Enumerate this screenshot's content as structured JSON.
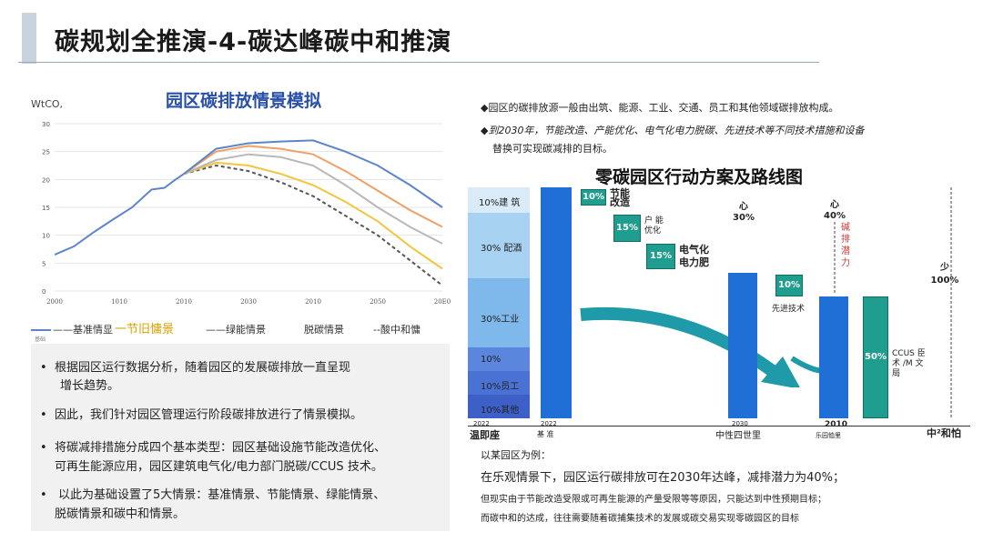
{
  "header": {
    "title": "碳规划全推演-4-碳达峰碳中和推演"
  },
  "left_chart": {
    "title": "园区碳排放情景模拟",
    "unit": "WtCO,",
    "legend": [
      "——基准情显",
      "一节旧慵景",
      "——绿能情景",
      "脱碳情景",
      "--酸中和慵"
    ],
    "legend_small": "基础"
  },
  "chart_data": {
    "type": "line",
    "title": "园区碳排放情景模拟",
    "ylabel": "WtCO,",
    "xlabel": "",
    "ylim": [
      0,
      30
    ],
    "y_ticks": [
      "0",
      "5",
      "10",
      "15",
      "20",
      "25",
      "30"
    ],
    "x_ticks": [
      "2000",
      "1010",
      "2010",
      "2030",
      "2010",
      "2050",
      "20E0"
    ],
    "x_range": [
      0,
      6
    ],
    "grid": true,
    "legend_position": "bottom",
    "colors": [
      "#5b86c7",
      "#f0a066",
      "#b8b8b8",
      "#f2c53d",
      "#555555"
    ],
    "history": {
      "x": [
        0,
        0.3,
        0.6,
        0.9,
        1.2,
        1.5,
        1.7,
        1.85,
        2.0
      ],
      "y": [
        6.5,
        8.0,
        10.5,
        12.8,
        15.0,
        18.2,
        18.5,
        19.8,
        21.0
      ]
    },
    "series": [
      {
        "name": "——基准情显",
        "x": [
          2.0,
          2.5,
          3.0,
          3.5,
          4.0,
          4.5,
          5.0,
          5.5,
          6.0
        ],
        "y": [
          21.0,
          25.5,
          26.5,
          26.8,
          27.0,
          25.0,
          22.5,
          19.0,
          15.0
        ]
      },
      {
        "name": "一节旧慵景",
        "x": [
          2.0,
          2.5,
          3.0,
          3.5,
          4.0,
          4.5,
          5.0,
          5.5,
          6.0
        ],
        "y": [
          21.0,
          25.0,
          26.0,
          25.5,
          24.5,
          21.5,
          18.0,
          14.5,
          11.5
        ]
      },
      {
        "name": "——绿能情景",
        "x": [
          2.0,
          2.5,
          3.0,
          3.5,
          4.0,
          4.5,
          5.0,
          5.5,
          6.0
        ],
        "y": [
          21.0,
          23.5,
          24.5,
          24.0,
          22.5,
          19.0,
          15.0,
          11.5,
          8.5
        ]
      },
      {
        "name": "脱碳情景",
        "x": [
          2.0,
          2.5,
          3.0,
          3.5,
          4.0,
          4.5,
          5.0,
          5.5,
          6.0
        ],
        "y": [
          21.0,
          23.0,
          22.5,
          21.0,
          19.0,
          16.0,
          12.5,
          8.0,
          4.0
        ]
      },
      {
        "name": "--酸中和慵",
        "x": [
          2.0,
          2.5,
          3.0,
          3.5,
          4.0,
          4.5,
          5.0,
          5.5,
          6.0
        ],
        "y": [
          21.0,
          22.5,
          21.5,
          19.5,
          17.0,
          13.5,
          10.0,
          5.5,
          1.0
        ]
      }
    ]
  },
  "left_panel": {
    "bullets": [
      [
        "根据园区运行数据分析，随着园区的发展碳排放一直呈现",
        "增长趋势。"
      ],
      [
        "因此，我们针对园区管理运行阶段碳排放进行了情景模拟。"
      ],
      [
        "将碳减排措施分成四个基本类型：园区基础设施节能改造优化、",
        "可再生能源应用，园区建筑电气化/电力部门脱碳/CCUS  技术。"
      ],
      [
        "以此为基础设置了5大情景：基准情景、节能情景、绿能情景、",
        "脱碳情景和碳中和情景。"
      ]
    ],
    "bullet_mark": "•"
  },
  "right_top": {
    "line1": "◆园区的碳排放源一般由出筑、能源、工业、交通、员工和其他领域碳排放构成。",
    "line2": "◆到2030年，节能改造、产能优化、电气化电力脱碳、先进技术等不同技术措施和设备",
    "line3": "替换可实现碳减排的目标。"
  },
  "roadmap": {
    "title": "零碳园区行动方案及路线图",
    "stack": [
      "10%建 筑",
      "30% 配酒",
      "30%工业",
      "10%",
      "10%员工",
      "10%其他"
    ],
    "stack_colors": [
      "#d9ebf8",
      "#a8d2f2",
      "#7fb8ea",
      "#5a86dd",
      "#4a72d4",
      "#3d60c8"
    ],
    "boxes": {
      "b1": "10%",
      "b1_label": "节能改造",
      "b2": "15%",
      "b2_label": "户 能 优化",
      "b3": "15%",
      "b3_label": "电气化 电力肥",
      "b4": "10%",
      "b4_label": "先进技术",
      "b5": "50%",
      "b5_label": "CCUS 臣 术 /M 文 局"
    },
    "callouts": {
      "c1": "心 30%",
      "c2": "心 40%",
      "c3": "碱 排 潜 力",
      "c4": "少 100%"
    },
    "axis": {
      "t1_year": "2022",
      "t1_label": "温即座",
      "t2_year": "2022",
      "t2_label": "基   准",
      "t3_year": "2030",
      "t3_label": "中性四世里",
      "t4_year": "2010",
      "t4_label": "乐园恤里",
      "t5_label": "中²和怕"
    }
  },
  "bottom_right": {
    "line1": "以某园区为例：",
    "line2": "在乐观情景下，园区运行碳排放可在2030年达峰，减排潜力为40%；",
    "line3": "但现实由于节能改造受限或可再生能源的产量受限等等原因，只能达到中性预期目标；",
    "line4": "而碳中和的达成，往往需要随着碳捕集技术的发展或碳交易实现零碳园区的目标"
  }
}
